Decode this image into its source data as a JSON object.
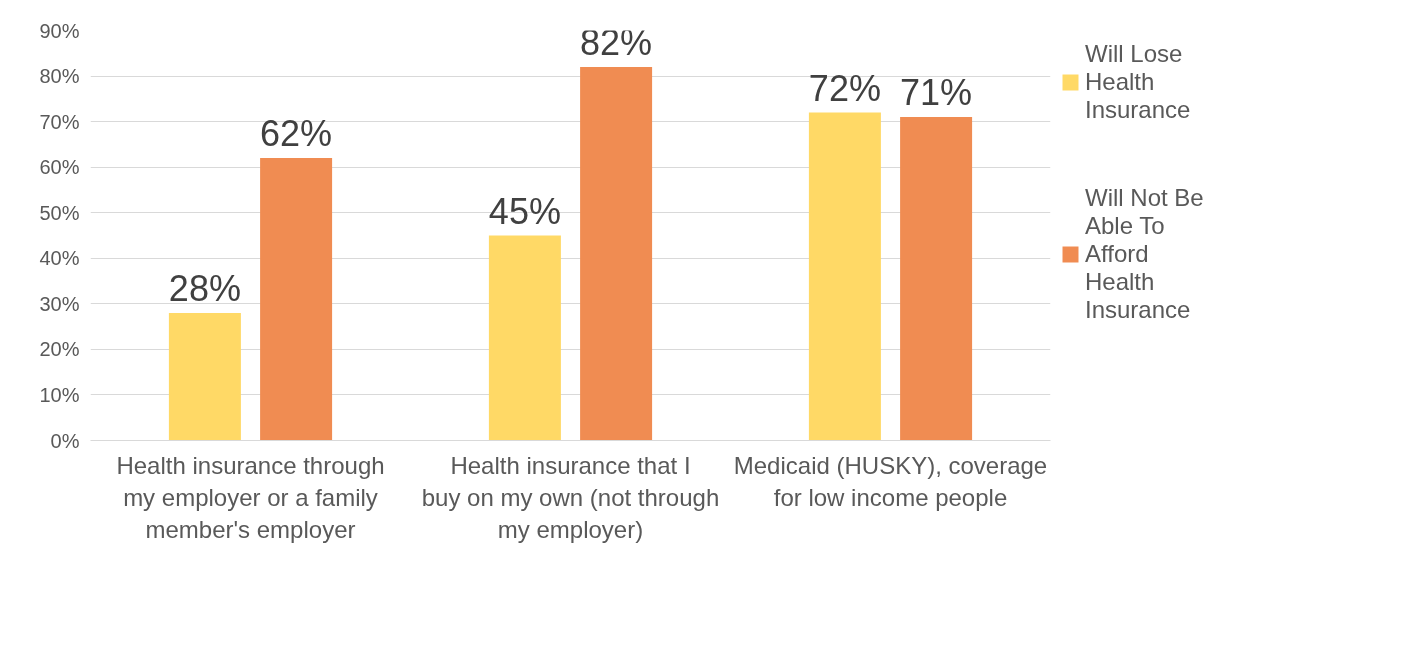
{
  "chart_data": {
    "type": "bar",
    "categories": [
      "Health insurance through my employer or a family member's employer",
      "Health insurance that I buy on my own (not through my employer)",
      "Medicaid (HUSKY), coverage for low income people"
    ],
    "series": [
      {
        "name": "Will Lose Health Insurance",
        "color": "#ffd966",
        "values": [
          28,
          45,
          72
        ],
        "value_labels": [
          "28%",
          "45%",
          "72%"
        ]
      },
      {
        "name": "Will Not Be Able To Afford Health Insurance",
        "color": "#f08c52",
        "values": [
          62,
          82,
          71
        ],
        "value_labels": [
          "62%",
          "82%",
          "71%"
        ]
      }
    ],
    "ylim": [
      0,
      90
    ],
    "yticks": [
      {
        "value": 0,
        "label": "0%"
      },
      {
        "value": 10,
        "label": "10%"
      },
      {
        "value": 20,
        "label": "20%"
      },
      {
        "value": 30,
        "label": "30%"
      },
      {
        "value": 40,
        "label": "40%"
      },
      {
        "value": 50,
        "label": "50%"
      },
      {
        "value": 60,
        "label": "60%"
      },
      {
        "value": 70,
        "label": "70%"
      },
      {
        "value": 80,
        "label": "80%"
      },
      {
        "value": 90,
        "label": "90%"
      }
    ],
    "grid": "y",
    "legend": "right"
  }
}
